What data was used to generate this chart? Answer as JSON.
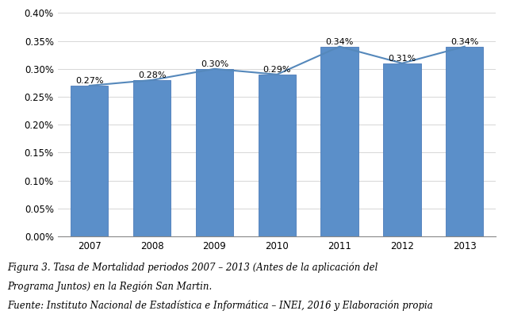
{
  "years": [
    "2007",
    "2008",
    "2009",
    "2010",
    "2011",
    "2012",
    "2013"
  ],
  "values": [
    0.0027,
    0.0028,
    0.003,
    0.0029,
    0.0034,
    0.0031,
    0.0034
  ],
  "labels": [
    "0.27%",
    "0.28%",
    "0.30%",
    "0.29%",
    "0.34%",
    "0.31%",
    "0.34%"
  ],
  "bar_color": "#5b8fc9",
  "bar_edge_color": "#4a7ab8",
  "line_color": "#5588bb",
  "ylim": [
    0,
    0.004
  ],
  "yticks": [
    0.0,
    0.0005,
    0.001,
    0.0015,
    0.002,
    0.0025,
    0.003,
    0.0035,
    0.004
  ],
  "ytick_labels": [
    "0.00%",
    "0.05%",
    "0.10%",
    "0.15%",
    "0.20%",
    "0.25%",
    "0.30%",
    "0.35%",
    "0.40%"
  ],
  "caption_line1": "Figura 3. Tasa de Mortalidad periodos 2007 – 2013 (Antes de la aplicación del",
  "caption_line2": "Programa Juntos) en la Región San Martin.",
  "caption_line3": "Fuente: Instituto Nacional de Estadística e Informática – INEI, 2016 y Elaboración propia",
  "background_color": "#ffffff",
  "grid_color": "#d0d0d0",
  "label_fontsize": 8,
  "tick_fontsize": 8.5,
  "caption_fontsize": 8.5
}
